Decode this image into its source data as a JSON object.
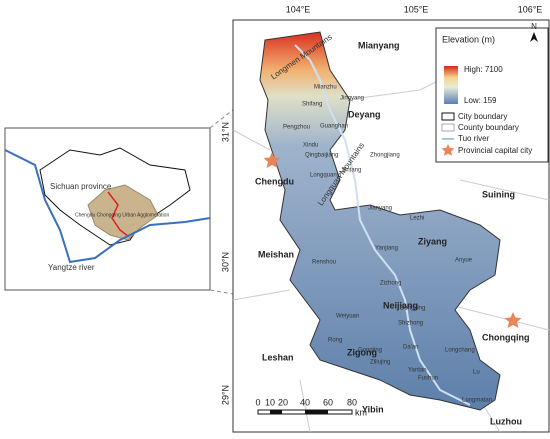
{
  "inset": {
    "labels": [
      "Sichuan province",
      "Chengdu Chongqing Urban Agglomeration",
      "Yangtze river"
    ]
  },
  "map": {
    "lon_ticks": [
      "104°E",
      "105°E",
      "106°E"
    ],
    "lat_ticks": [
      "31°N",
      "30°N",
      "29°N"
    ],
    "mountains": [
      "Longmen Mountains",
      "Longquan Mountains"
    ],
    "cities": [
      "Mianyang",
      "Deyang",
      "Chengdu",
      "Suining",
      "Ziyang",
      "Meishan",
      "Neijiang",
      "Chongqing",
      "Leshan",
      "Zigong",
      "Yibin",
      "Luzhou"
    ],
    "counties": [
      "Mianzhu",
      "Jingyang",
      "Shifang",
      "Guanghan",
      "Pengzhou",
      "Xindu",
      "Qingbaijiang",
      "Longquanyi",
      "Jintang",
      "Zhongjiang",
      "Jianyang",
      "Lezhi",
      "Yanjiang",
      "Renshou",
      "Anyue",
      "Zizhong",
      "Dongxing",
      "Weiyuan",
      "Shizhong",
      "Rong",
      "Gongjing",
      "Da'an",
      "Longchang",
      "Ziliujing",
      "Yantan",
      "Fushun",
      "Lu",
      "Longmatan"
    ]
  },
  "legend": {
    "title": "Elevation (m)",
    "high": "High: 7100",
    "low": "Low: 159",
    "items": [
      "City boundary",
      "County boundary",
      "Tuo river",
      "Provincial capital city"
    ],
    "north": "N"
  },
  "scale": {
    "ticks": [
      "0",
      "10",
      "20",
      "40",
      "60",
      "80"
    ],
    "unit": "km"
  }
}
